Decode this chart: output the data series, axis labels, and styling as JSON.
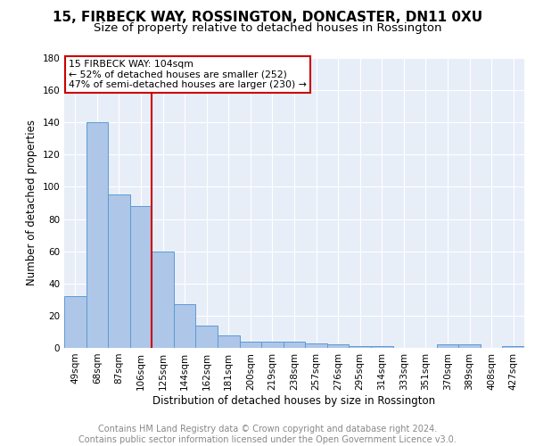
{
  "title": "15, FIRBECK WAY, ROSSINGTON, DONCASTER, DN11 0XU",
  "subtitle": "Size of property relative to detached houses in Rossington",
  "xlabel": "Distribution of detached houses by size in Rossington",
  "ylabel": "Number of detached properties",
  "categories": [
    "49sqm",
    "68sqm",
    "87sqm",
    "106sqm",
    "125sqm",
    "144sqm",
    "162sqm",
    "181sqm",
    "200sqm",
    "219sqm",
    "238sqm",
    "257sqm",
    "276sqm",
    "295sqm",
    "314sqm",
    "333sqm",
    "351sqm",
    "370sqm",
    "389sqm",
    "408sqm",
    "427sqm"
  ],
  "values": [
    32,
    140,
    95,
    88,
    60,
    27,
    14,
    8,
    4,
    4,
    4,
    3,
    2,
    1,
    1,
    0,
    0,
    2,
    2,
    0,
    1
  ],
  "bar_color": "#aec6e8",
  "bar_edge_color": "#5b9bd5",
  "plot_bg_color": "#e8eef8",
  "grid_color": "#ffffff",
  "red_line_x": 3.5,
  "annotation_text": "15 FIRBECK WAY: 104sqm\n← 52% of detached houses are smaller (252)\n47% of semi-detached houses are larger (230) →",
  "annotation_box_color": "#cc0000",
  "ylim": [
    0,
    180
  ],
  "yticks": [
    0,
    20,
    40,
    60,
    80,
    100,
    120,
    140,
    160,
    180
  ],
  "footer_line1": "Contains HM Land Registry data © Crown copyright and database right 2024.",
  "footer_line2": "Contains public sector information licensed under the Open Government Licence v3.0.",
  "title_fontsize": 11,
  "subtitle_fontsize": 9.5,
  "axis_label_fontsize": 8.5,
  "tick_fontsize": 7.5,
  "footer_fontsize": 7
}
